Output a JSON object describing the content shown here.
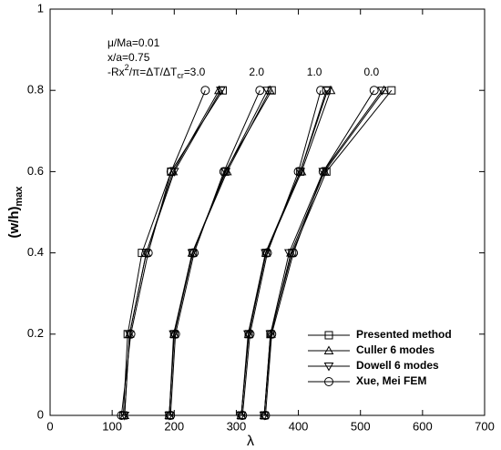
{
  "chart_data": {
    "type": "line",
    "xlabel": "λ",
    "ylabel": {
      "parts": [
        "(w/h)",
        "max"
      ]
    },
    "annotations": [
      "μ/Ma=0.01",
      "x/a=0.75"
    ],
    "parameter_label": {
      "parts": [
        "-Rx",
        "2",
        "/π=ΔT/ΔT",
        "cr",
        "="
      ]
    },
    "curve_labels": [
      {
        "text": "3.0",
        "x": 250
      },
      {
        "text": "2.0",
        "x": 345
      },
      {
        "text": "1.0",
        "x": 438
      },
      {
        "text": "0.0",
        "x": 530
      }
    ],
    "xlim": [
      0,
      700
    ],
    "xticks": [
      0,
      100,
      200,
      300,
      400,
      500,
      600,
      700
    ],
    "ylim": [
      0,
      1
    ],
    "yticks": [
      0,
      0.2,
      0.4,
      0.6,
      0.8,
      1
    ],
    "legend": "lower right",
    "series": [
      {
        "name": "Presented method",
        "color": "#000000",
        "marker": "square",
        "x": [
          118,
          125,
          148,
          195,
          278,
          null,
          192,
          200,
          230,
          282,
          357,
          null,
          308,
          320,
          348,
          403,
          445,
          null,
          345,
          355,
          390,
          445,
          550
        ],
        "values": [
          0,
          0.2,
          0.4,
          0.6,
          0.8,
          null,
          0,
          0.2,
          0.4,
          0.6,
          0.8,
          null,
          0,
          0.2,
          0.4,
          0.6,
          0.8,
          null,
          0,
          0.2,
          0.4,
          0.6,
          0.8
        ]
      },
      {
        "name": "Culler 6 modes",
        "color": "#000000",
        "marker": "triangle",
        "x": [
          120,
          128,
          155,
          198,
          272,
          null,
          192,
          200,
          229,
          285,
          354,
          null,
          308,
          320,
          348,
          405,
          452,
          null,
          345,
          356,
          388,
          442,
          538
        ],
        "values": [
          0,
          0.2,
          0.4,
          0.6,
          0.8,
          null,
          0,
          0.2,
          0.4,
          0.6,
          0.8,
          null,
          0,
          0.2,
          0.4,
          0.6,
          0.8,
          null,
          0,
          0.2,
          0.4,
          0.6,
          0.8
        ]
      },
      {
        "name": "Dowell 6 modes",
        "color": "#000000",
        "marker": "triangle-down",
        "x": [
          120,
          128,
          155,
          200,
          275,
          null,
          192,
          199,
          229,
          283,
          350,
          null,
          308,
          319,
          347,
          403,
          447,
          null,
          345,
          355,
          385,
          440,
          535
        ],
        "values": [
          0,
          0.2,
          0.4,
          0.6,
          0.8,
          null,
          0,
          0.2,
          0.4,
          0.6,
          0.8,
          null,
          0,
          0.2,
          0.4,
          0.6,
          0.8,
          null,
          0,
          0.2,
          0.4,
          0.6,
          0.8
        ]
      },
      {
        "name": "Xue, Mei FEM",
        "color": "#000000",
        "marker": "circle",
        "x": [
          115,
          130,
          158,
          195,
          250,
          null,
          194,
          202,
          232,
          280,
          338,
          null,
          310,
          322,
          350,
          400,
          436,
          null,
          347,
          357,
          392,
          440,
          522
        ],
        "values": [
          0,
          0.2,
          0.4,
          0.6,
          0.8,
          null,
          0,
          0.2,
          0.4,
          0.6,
          0.8,
          null,
          0,
          0.2,
          0.4,
          0.6,
          0.8,
          null,
          0,
          0.2,
          0.4,
          0.6,
          0.8
        ]
      }
    ]
  }
}
